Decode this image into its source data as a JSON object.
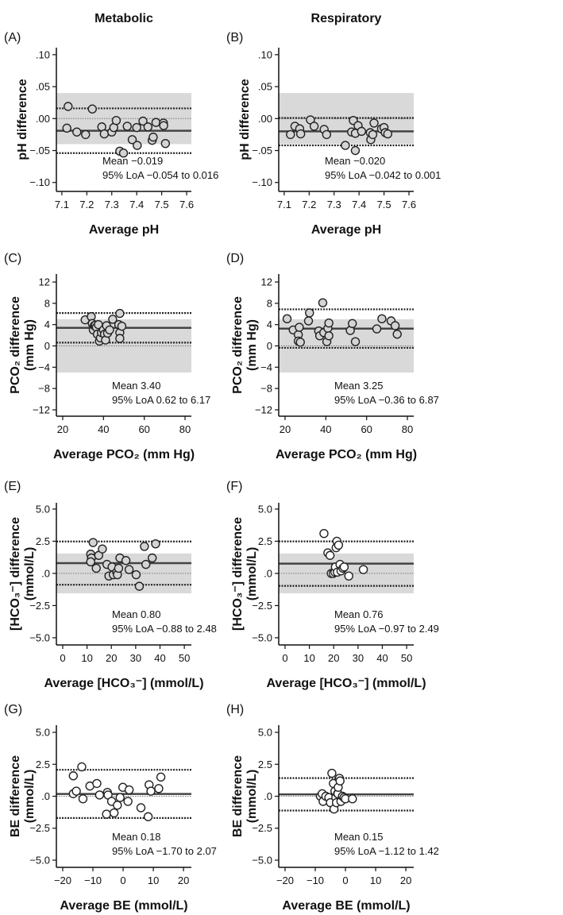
{
  "chart_data": {
    "type": "scatter",
    "column_titles": [
      "Metabolic",
      "Respiratory"
    ],
    "panels": [
      {
        "label": "(A)",
        "ylabel": [
          "pH difference"
        ],
        "xlabel": "Average pH",
        "xlim": [
          7.078,
          7.619
        ],
        "ylim": [
          -0.114,
          0.111
        ],
        "xticks": [
          7.1,
          7.2,
          7.3,
          7.4,
          7.5,
          7.6
        ],
        "xtick_labels": [
          "7.1",
          "7.2",
          "7.3",
          "7.4",
          "7.5",
          "7.6"
        ],
        "yticks": [
          0.1,
          0.05,
          0,
          -0.05,
          -0.1
        ],
        "ytick_labels": [
          ".10",
          ".05",
          ".00",
          "−.05",
          "−.10"
        ],
        "band": [
          -0.04,
          0.04
        ],
        "mean": -0.019,
        "loa": [
          -0.054,
          0.016
        ],
        "annotation": [
          "Mean −0.019",
          "95% LoA −0.054 to 0.016"
        ],
        "point_fill": "#d4d4d4",
        "points": [
          [
            7.125,
            0.019
          ],
          [
            7.12,
            -0.015
          ],
          [
            7.16,
            -0.021
          ],
          [
            7.195,
            -0.025
          ],
          [
            7.222,
            0.015
          ],
          [
            7.26,
            -0.013
          ],
          [
            7.27,
            -0.024
          ],
          [
            7.3,
            -0.021
          ],
          [
            7.308,
            -0.014
          ],
          [
            7.318,
            -0.003
          ],
          [
            7.332,
            -0.051
          ],
          [
            7.347,
            -0.054
          ],
          [
            7.362,
            -0.012
          ],
          [
            7.382,
            -0.033
          ],
          [
            7.4,
            -0.014
          ],
          [
            7.402,
            -0.042
          ],
          [
            7.425,
            -0.004
          ],
          [
            7.445,
            -0.013
          ],
          [
            7.462,
            -0.034
          ],
          [
            7.466,
            -0.029
          ],
          [
            7.477,
            -0.006
          ],
          [
            7.507,
            -0.007
          ],
          [
            7.508,
            -0.011
          ],
          [
            7.515,
            -0.039
          ]
        ]
      },
      {
        "label": "(B)",
        "ylabel": [
          "pH difference"
        ],
        "xlabel": "Average pH",
        "xlim": [
          7.078,
          7.619
        ],
        "ylim": [
          -0.114,
          0.111
        ],
        "xticks": [
          7.1,
          7.2,
          7.3,
          7.4,
          7.5,
          7.6
        ],
        "xtick_labels": [
          "7.1",
          "7.2",
          "7.3",
          "7.4",
          "7.5",
          "7.6"
        ],
        "yticks": [
          0.1,
          0.05,
          0,
          -0.05,
          -0.1
        ],
        "ytick_labels": [
          ".10",
          ".05",
          ".00",
          "−.05",
          "−.10"
        ],
        "band": [
          -0.04,
          0.04
        ],
        "mean": -0.02,
        "loa": [
          -0.042,
          0.001
        ],
        "annotation": [
          "Mean −0.020",
          "95% LoA −0.042 to 0.001"
        ],
        "point_fill": "#d4d4d4",
        "points": [
          [
            7.125,
            -0.025
          ],
          [
            7.143,
            -0.012
          ],
          [
            7.162,
            -0.016
          ],
          [
            7.166,
            -0.024
          ],
          [
            7.205,
            -0.002
          ],
          [
            7.22,
            -0.012
          ],
          [
            7.26,
            -0.017
          ],
          [
            7.27,
            -0.025
          ],
          [
            7.345,
            -0.042
          ],
          [
            7.37,
            -0.021
          ],
          [
            7.377,
            -0.003
          ],
          [
            7.385,
            -0.023
          ],
          [
            7.385,
            -0.05
          ],
          [
            7.396,
            -0.011
          ],
          [
            7.41,
            -0.02
          ],
          [
            7.445,
            -0.022
          ],
          [
            7.447,
            -0.033
          ],
          [
            7.455,
            -0.025
          ],
          [
            7.46,
            -0.007
          ],
          [
            7.49,
            -0.016
          ],
          [
            7.5,
            -0.014
          ],
          [
            7.505,
            -0.022
          ],
          [
            7.515,
            -0.024
          ]
        ]
      },
      {
        "label": "(C)",
        "ylabel": [
          "PCO₂ difference",
          "(mm Hg)"
        ],
        "xlabel": "Average PCO₂ (mm Hg)",
        "xlim": [
          16.9,
          83.1
        ],
        "ylim": [
          -13.2,
          13.5
        ],
        "xticks": [
          20,
          40,
          60,
          80
        ],
        "xtick_labels": [
          "20",
          "40",
          "60",
          "80"
        ],
        "yticks": [
          12,
          8,
          4,
          0,
          -4,
          -8,
          -12
        ],
        "ytick_labels": [
          "12",
          "8",
          "4",
          "0",
          "−4",
          "−8",
          "−12"
        ],
        "band": [
          -5,
          5
        ],
        "mean": 3.4,
        "loa": [
          0.62,
          6.17
        ],
        "annotation": [
          "Mean 3.40",
          "95% LoA 0.62 to 6.17"
        ],
        "point_fill": "#d4d4d4",
        "points": [
          [
            31,
            4.9
          ],
          [
            34,
            5.5
          ],
          [
            34.5,
            4.2
          ],
          [
            35,
            3.0
          ],
          [
            35.5,
            3.8
          ],
          [
            36,
            3.9
          ],
          [
            36.5,
            3.5
          ],
          [
            37,
            2.2
          ],
          [
            37.5,
            4.0
          ],
          [
            38,
            0.9
          ],
          [
            38.5,
            1.5
          ],
          [
            39,
            2.5
          ],
          [
            40,
            3.0
          ],
          [
            40.5,
            2.2
          ],
          [
            41,
            1.1
          ],
          [
            41.5,
            3.8
          ],
          [
            42,
            2.4
          ],
          [
            43,
            3.0
          ],
          [
            44.5,
            5.0
          ],
          [
            47.5,
            4.0
          ],
          [
            48,
            6.1
          ],
          [
            48,
            2.5
          ],
          [
            48,
            1.4
          ],
          [
            49,
            3.7
          ]
        ]
      },
      {
        "label": "(D)",
        "ylabel": [
          "PCO₂ difference",
          "(mm Hg)"
        ],
        "xlabel": "Average PCO₂ (mm Hg)",
        "xlim": [
          16.9,
          83.1
        ],
        "ylim": [
          -13.2,
          13.5
        ],
        "xticks": [
          20,
          40,
          60,
          80
        ],
        "xtick_labels": [
          "20",
          "40",
          "60",
          "80"
        ],
        "yticks": [
          12,
          8,
          4,
          0,
          -4,
          -8,
          -12
        ],
        "ytick_labels": [
          "12",
          "8",
          "4",
          "0",
          "−4",
          "−8",
          "−12"
        ],
        "band": [
          -5,
          5
        ],
        "mean": 3.25,
        "loa": [
          -0.36,
          6.87
        ],
        "annotation": [
          "Mean 3.25",
          "95% LoA −0.36 to 6.87"
        ],
        "point_fill": "#d4d4d4",
        "points": [
          [
            21,
            5.1
          ],
          [
            24,
            3.0
          ],
          [
            26.5,
            2.1
          ],
          [
            26.5,
            0.9
          ],
          [
            27,
            3.5
          ],
          [
            27.5,
            0.7
          ],
          [
            31.5,
            4.7
          ],
          [
            32,
            6.2
          ],
          [
            36.5,
            2.8
          ],
          [
            37,
            1.9
          ],
          [
            38.5,
            8.1
          ],
          [
            39,
            2.5
          ],
          [
            40.5,
            0.8
          ],
          [
            41,
            3.3
          ],
          [
            41.5,
            4.3
          ],
          [
            41.5,
            1.9
          ],
          [
            52,
            2.9
          ],
          [
            53,
            4.2
          ],
          [
            54.5,
            0.8
          ],
          [
            65,
            3.2
          ],
          [
            67.5,
            5.1
          ],
          [
            72,
            4.7
          ],
          [
            74,
            3.8
          ],
          [
            75,
            2.2
          ]
        ]
      },
      {
        "label": "(E)",
        "ylabel": [
          "[HCO₃⁻] difference",
          "(mmol/L)"
        ],
        "xlabel": "Average [HCO₃⁻] (mmol/L)",
        "xlim": [
          -2.6,
          52.9
        ],
        "ylim": [
          -5.56,
          5.49
        ],
        "xticks": [
          0,
          10,
          20,
          30,
          40,
          50
        ],
        "xtick_labels": [
          "0",
          "10",
          "20",
          "30",
          "40",
          "50"
        ],
        "yticks": [
          5,
          2.5,
          0,
          -2.5,
          -5
        ],
        "ytick_labels": [
          "5.0",
          "2.5",
          ".0",
          "−2.5",
          "−5.0"
        ],
        "band": [
          -1.55,
          1.55
        ],
        "mean": 0.8,
        "loa": [
          -0.88,
          2.48
        ],
        "annotation": [
          "Mean 0.80",
          "95% LoA −0.88 to 2.48"
        ],
        "point_fill": "#d4d4d4",
        "points": [
          [
            11.5,
            1.5
          ],
          [
            11.8,
            1.2
          ],
          [
            11.5,
            0.9
          ],
          [
            12.5,
            2.4
          ],
          [
            13.8,
            0.4
          ],
          [
            14.8,
            1.4
          ],
          [
            16.3,
            1.9
          ],
          [
            18.2,
            0.7
          ],
          [
            19,
            -0.2
          ],
          [
            20.3,
            0.5
          ],
          [
            20.8,
            -0.1
          ],
          [
            22.2,
            0.1
          ],
          [
            22.5,
            -0.1
          ],
          [
            23,
            0.4
          ],
          [
            23.5,
            1.2
          ],
          [
            26,
            1.0
          ],
          [
            27.3,
            0.3
          ],
          [
            30.2,
            -0.1
          ],
          [
            31.5,
            -1.0
          ],
          [
            33.6,
            2.1
          ],
          [
            34.2,
            0.7
          ],
          [
            36.8,
            1.2
          ],
          [
            38.2,
            2.3
          ]
        ]
      },
      {
        "label": "(F)",
        "ylabel": [
          "[HCO₃⁻] difference",
          "(mmol/L)"
        ],
        "xlabel": "Average [HCO₃⁻] (mmol/L)",
        "xlim": [
          -2.6,
          52.9
        ],
        "ylim": [
          -5.56,
          5.49
        ],
        "xticks": [
          0,
          10,
          20,
          30,
          40,
          50
        ],
        "xtick_labels": [
          "0",
          "10",
          "20",
          "30",
          "40",
          "50"
        ],
        "yticks": [
          5,
          2.5,
          0,
          -2.5,
          -5
        ],
        "ytick_labels": [
          "5.0",
          "2.5",
          ".0",
          "−2.5",
          "−5.0"
        ],
        "band": [
          -1.55,
          1.55
        ],
        "mean": 0.76,
        "loa": [
          -0.97,
          2.49
        ],
        "annotation": [
          "Mean 0.76",
          "95% LoA −0.97 to 2.49"
        ],
        "point_fill": "#ffffff",
        "points": [
          [
            16,
            3.1
          ],
          [
            17.6,
            1.6
          ],
          [
            18.5,
            1.4
          ],
          [
            19,
            0
          ],
          [
            19.8,
            0
          ],
          [
            20.5,
            0.1
          ],
          [
            20.7,
            0.5
          ],
          [
            21,
            2.0
          ],
          [
            21.3,
            2.5
          ],
          [
            21.5,
            0.1
          ],
          [
            22,
            2.2
          ],
          [
            22.6,
            0.7
          ],
          [
            23,
            0.2
          ],
          [
            23.8,
            0.4
          ],
          [
            24.3,
            0.5
          ],
          [
            26.2,
            -0.2
          ],
          [
            32.2,
            0.3
          ]
        ]
      },
      {
        "label": "(G)",
        "ylabel": [
          "BE difference",
          "(mmol/L)"
        ],
        "xlabel": "Average BE (mmol/L)",
        "xlim": [
          -22.1,
          22.6
        ],
        "ylim": [
          -5.56,
          5.56
        ],
        "xticks": [
          -20,
          -10,
          0,
          10,
          20
        ],
        "xtick_labels": [
          "−20",
          "−10",
          "0",
          "10",
          "20"
        ],
        "yticks": [
          5,
          2.5,
          0,
          -2.5,
          -5
        ],
        "ytick_labels": [
          "5.0",
          "2.5",
          ".0",
          "−2.5",
          "−5.0"
        ],
        "band": null,
        "mean": 0.18,
        "loa": [
          -1.7,
          2.07
        ],
        "annotation": [
          "Mean 0.18",
          "95% LoA −1.70 to 2.07"
        ],
        "point_fill": "#ffffff",
        "points": [
          [
            -16.5,
            1.6
          ],
          [
            -16.5,
            0.2
          ],
          [
            -15.5,
            0.4
          ],
          [
            -13.7,
            2.3
          ],
          [
            -13.3,
            -0.2
          ],
          [
            -11,
            0.8
          ],
          [
            -8.7,
            1.0
          ],
          [
            -7.8,
            0.1
          ],
          [
            -5.5,
            -1.4
          ],
          [
            -5.2,
            0.3
          ],
          [
            -5,
            0.1
          ],
          [
            -3.8,
            -0.4
          ],
          [
            -3,
            -1.3
          ],
          [
            -1.9,
            -0.7
          ],
          [
            -1,
            -0.1
          ],
          [
            -0.1,
            0.7
          ],
          [
            1.6,
            -0.4
          ],
          [
            2,
            0.5
          ],
          [
            5.9,
            -0.9
          ],
          [
            8.3,
            -1.6
          ],
          [
            8.6,
            0.9
          ],
          [
            9.2,
            0.4
          ],
          [
            11.8,
            0.6
          ],
          [
            12.5,
            1.5
          ]
        ]
      },
      {
        "label": "(H)",
        "ylabel": [
          "BE difference",
          "(mmol/L)"
        ],
        "xlabel": "Average BE (mmol/L)",
        "xlim": [
          -22.1,
          22.6
        ],
        "ylim": [
          -5.56,
          5.56
        ],
        "xticks": [
          -20,
          -10,
          0,
          10,
          20
        ],
        "xtick_labels": [
          "−20",
          "−10",
          "0",
          "10",
          "20"
        ],
        "yticks": [
          5,
          2.5,
          0,
          -2.5,
          -5
        ],
        "ytick_labels": [
          "5.0",
          "2.5",
          ".0",
          "−2.5",
          "−5.0"
        ],
        "band": null,
        "mean": 0.15,
        "loa": [
          -1.12,
          1.42
        ],
        "annotation": [
          "Mean 0.15",
          "95% LoA −1.12 to 1.42"
        ],
        "point_fill": "#ffffff",
        "points": [
          [
            -8.3,
            0
          ],
          [
            -7.7,
            0.2
          ],
          [
            -7.4,
            -0.4
          ],
          [
            -6.5,
            0
          ],
          [
            -5.5,
            -0.1
          ],
          [
            -5,
            -0.5
          ],
          [
            -4.5,
            1.8
          ],
          [
            -4,
            1.0
          ],
          [
            -3.8,
            -1.0
          ],
          [
            -3.5,
            0.4
          ],
          [
            -3.2,
            -0.1
          ],
          [
            -3,
            -0.5
          ],
          [
            -2.6,
            0.2
          ],
          [
            -2.5,
            0.2
          ],
          [
            -2.4,
            0.7
          ],
          [
            -2,
            1.4
          ],
          [
            -1.8,
            1.2
          ],
          [
            -1.5,
            -0.4
          ],
          [
            -1,
            0
          ],
          [
            -0.5,
            -0.1
          ],
          [
            0,
            -0.2
          ],
          [
            2.3,
            -0.2
          ]
        ]
      }
    ]
  }
}
